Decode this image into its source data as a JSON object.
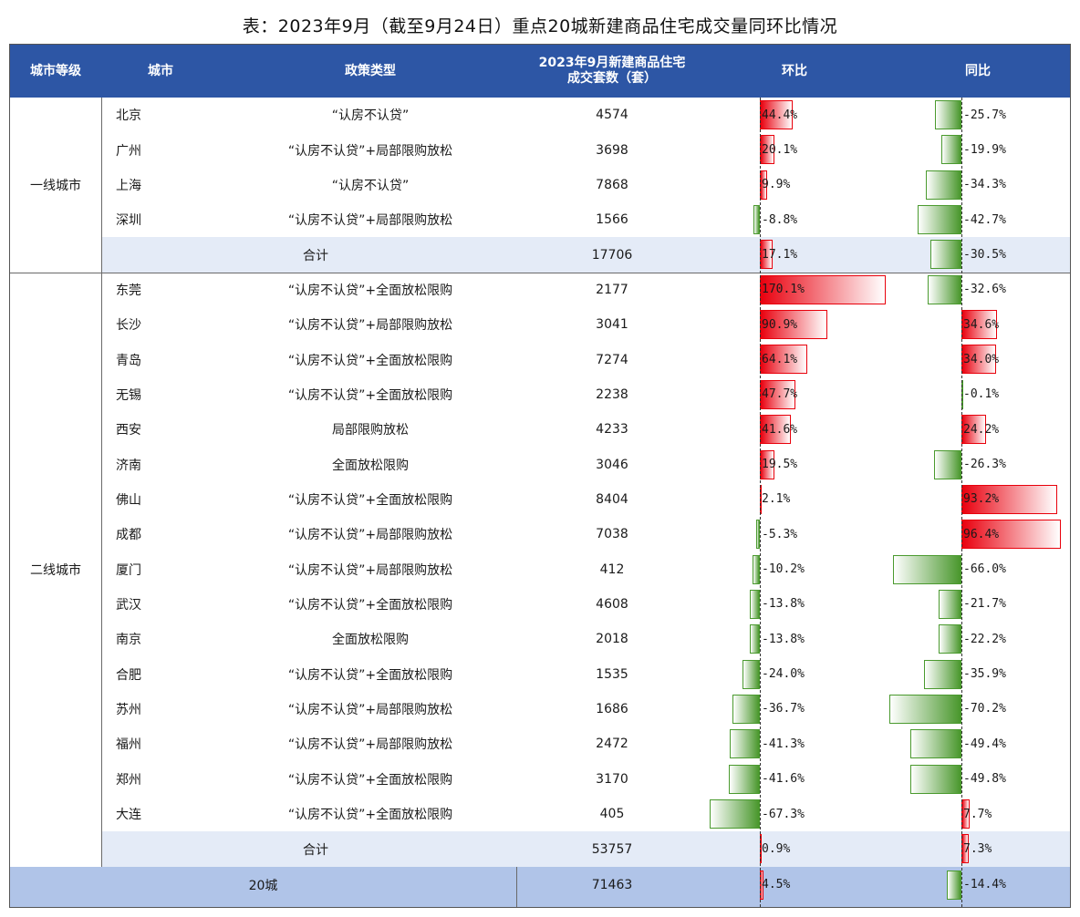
{
  "title": "表：2023年9月（截至9月24日）重点20城新建商品住宅成交量同环比情况",
  "headers": {
    "tier": "城市等级",
    "city": "城市",
    "policy": "政策类型",
    "volume_line1": "2023年9月新建商品住宅",
    "volume_line2": "成交套数（套）",
    "mom": "环比",
    "yoy": "同比"
  },
  "colors": {
    "header_bg": "#2d56a5",
    "positive": "#e9000e",
    "negative": "#49972c",
    "subtotal_bg": "#e4ebf7",
    "total_bg": "#b0c4e8"
  },
  "chart_data": {
    "type": "table",
    "columns": [
      "城市等级",
      "城市",
      "政策类型",
      "2023年9月新建商品住宅成交套数（套）",
      "环比",
      "同比"
    ],
    "groups": [
      {
        "tier": "一线城市",
        "rows": [
          {
            "city": "北京",
            "policy": "“认房不认贷”",
            "volume": "4574",
            "mom": 44.4,
            "yoy": -25.7
          },
          {
            "city": "广州",
            "policy": "“认房不认贷”+局部限购放松",
            "volume": "3698",
            "mom": 20.1,
            "yoy": -19.9
          },
          {
            "city": "上海",
            "policy": "“认房不认贷”",
            "volume": "7868",
            "mom": 9.9,
            "yoy": -34.3
          },
          {
            "city": "深圳",
            "policy": "“认房不认贷”+局部限购放松",
            "volume": "1566",
            "mom": -8.8,
            "yoy": -42.7
          }
        ],
        "subtotal": {
          "label": "合计",
          "volume": "17706",
          "mom": 17.1,
          "yoy": -30.5
        }
      },
      {
        "tier": "二线城市",
        "rows": [
          {
            "city": "东莞",
            "policy": "“认房不认贷”+全面放松限购",
            "volume": "2177",
            "mom": 170.1,
            "yoy": -32.6
          },
          {
            "city": "长沙",
            "policy": "“认房不认贷”+局部限购放松",
            "volume": "3041",
            "mom": 90.9,
            "yoy": 34.6
          },
          {
            "city": "青岛",
            "policy": "“认房不认贷”+全面放松限购",
            "volume": "7274",
            "mom": 64.1,
            "yoy": 34.0
          },
          {
            "city": "无锡",
            "policy": "“认房不认贷”+全面放松限购",
            "volume": "2238",
            "mom": 47.7,
            "yoy": -0.1
          },
          {
            "city": "西安",
            "policy": "局部限购放松",
            "volume": "4233",
            "mom": 41.6,
            "yoy": 24.2
          },
          {
            "city": "济南",
            "policy": "全面放松限购",
            "volume": "3046",
            "mom": 19.5,
            "yoy": -26.3
          },
          {
            "city": "佛山",
            "policy": "“认房不认贷”+全面放松限购",
            "volume": "8404",
            "mom": 2.1,
            "yoy": 93.2
          },
          {
            "city": "成都",
            "policy": "“认房不认贷”+局部限购放松",
            "volume": "7038",
            "mom": -5.3,
            "yoy": 96.4
          },
          {
            "city": "厦门",
            "policy": "“认房不认贷”+局部限购放松",
            "volume": "412",
            "mom": -10.2,
            "yoy": -66.0
          },
          {
            "city": "武汉",
            "policy": "“认房不认贷”+全面放松限购",
            "volume": "4608",
            "mom": -13.8,
            "yoy": -21.7
          },
          {
            "city": "南京",
            "policy": "全面放松限购",
            "volume": "2018",
            "mom": -13.8,
            "yoy": -22.2
          },
          {
            "city": "合肥",
            "policy": "“认房不认贷”+全面放松限购",
            "volume": "1535",
            "mom": -24.0,
            "yoy": -35.9
          },
          {
            "city": "苏州",
            "policy": "“认房不认贷”+局部限购放松",
            "volume": "1686",
            "mom": -36.7,
            "yoy": -70.2
          },
          {
            "city": "福州",
            "policy": "“认房不认贷”+局部限购放松",
            "volume": "2472",
            "mom": -41.3,
            "yoy": -49.4
          },
          {
            "city": "郑州",
            "policy": "“认房不认贷”+全面放松限购",
            "volume": "3170",
            "mom": -41.6,
            "yoy": -49.8
          },
          {
            "city": "大连",
            "policy": "“认房不认贷”+全面放松限购",
            "volume": "405",
            "mom": -67.3,
            "yoy": 7.7
          }
        ],
        "subtotal": {
          "label": "合计",
          "volume": "53757",
          "mom": 0.9,
          "yoy": 7.3
        }
      }
    ],
    "total": {
      "label": "20城",
      "volume": "71463",
      "mom": 4.5,
      "yoy": -14.4
    }
  }
}
